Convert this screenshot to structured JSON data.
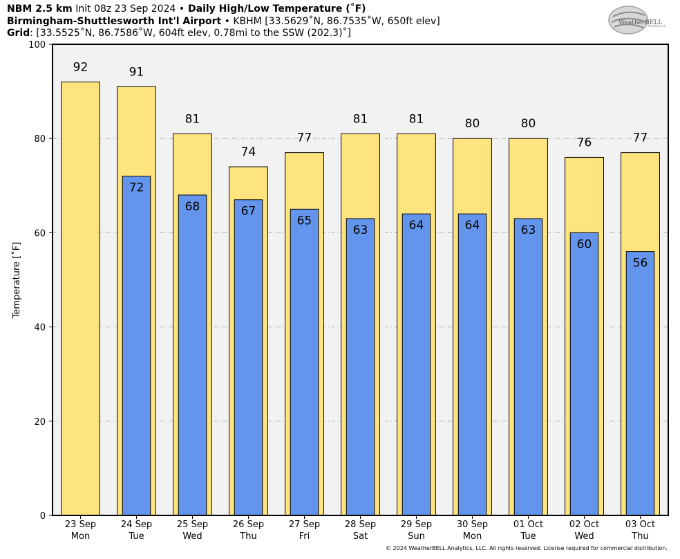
{
  "header": {
    "line1": {
      "model": "NBM 2.5 km",
      "init": " Init 08z 23 Sep 2024 ",
      "sep": "•",
      "title": " Daily High/Low Temperature (˚F)"
    },
    "line2": {
      "station": "Birmingham-Shuttlesworth Int'l Airport",
      "sep": " • ",
      "details": "KBHM [33.5629˚N, 86.7535˚W, 650ft elev]"
    },
    "line3": {
      "label": "Grid",
      "details": ": [33.5525˚N, 86.7586˚W, 604ft elev, 0.78mi to the SSW (202.3)˚]"
    }
  },
  "logo": {
    "text": "WeatherBELL",
    "subtext": "Analytics LLC"
  },
  "footer": "© 2024 WeatherBELL Analytics, LLC. All rights reserved. License required for commercial distribution.",
  "colors": {
    "high": "#fde47f",
    "low": "#6495ed",
    "plot_bg": "#f2f2f2",
    "grid": "#b0b0b0"
  },
  "chart_data": {
    "type": "bar",
    "categories": [
      "23 Sep",
      "24 Sep",
      "25 Sep",
      "26 Sep",
      "27 Sep",
      "28 Sep",
      "29 Sep",
      "30 Sep",
      "01 Oct",
      "02 Oct",
      "03 Oct"
    ],
    "category_sublabels": [
      "Mon",
      "Tue",
      "Wed",
      "Thu",
      "Fri",
      "Sat",
      "Sun",
      "Mon",
      "Tue",
      "Wed",
      "Thu"
    ],
    "series": [
      {
        "name": "High",
        "values": [
          92,
          91,
          81,
          74,
          77,
          81,
          81,
          80,
          80,
          76,
          77
        ],
        "labels": [
          "92",
          "91",
          "81",
          "74",
          "77",
          "81",
          "81",
          "80",
          "80",
          "76",
          "77"
        ]
      },
      {
        "name": "Low",
        "values": [
          null,
          72,
          68,
          67,
          65,
          63,
          64,
          64,
          63,
          60,
          56
        ],
        "labels": [
          "",
          "72",
          "68",
          "67",
          "65",
          "63",
          "64",
          "64",
          "63",
          "60",
          "56"
        ]
      }
    ],
    "title": "Daily High/Low Temperature (˚F)",
    "xlabel": "",
    "ylabel": "Temperature [˚F]",
    "ylim": [
      0,
      100
    ],
    "yticks": [
      0,
      20,
      40,
      60,
      80,
      100
    ],
    "grid": true
  }
}
